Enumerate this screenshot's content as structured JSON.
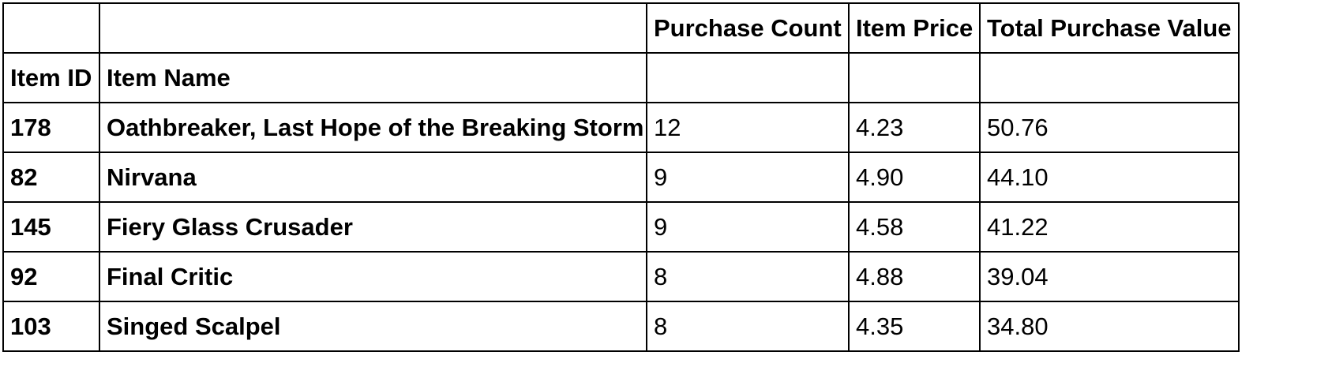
{
  "chart_data": {
    "type": "table",
    "columns": [
      "Item ID",
      "Item Name",
      "Purchase Count",
      "Item Price",
      "Total Purchase Value"
    ],
    "header_rows": [
      [
        "",
        "",
        "Purchase Count",
        "Item Price",
        "Total Purchase Value"
      ],
      [
        "Item ID",
        "Item Name",
        "",
        "",
        ""
      ]
    ],
    "rows": [
      [
        "178",
        "Oathbreaker, Last Hope of the Breaking Storm",
        "12",
        "4.23",
        "50.76"
      ],
      [
        "82",
        "Nirvana",
        "9",
        "4.90",
        "44.10"
      ],
      [
        "145",
        "Fiery Glass Crusader",
        "9",
        "4.58",
        "41.22"
      ],
      [
        "92",
        "Final Critic",
        "8",
        "4.88",
        "39.04"
      ],
      [
        "103",
        "Singed Scalpel",
        "8",
        "4.35",
        "34.80"
      ]
    ]
  }
}
